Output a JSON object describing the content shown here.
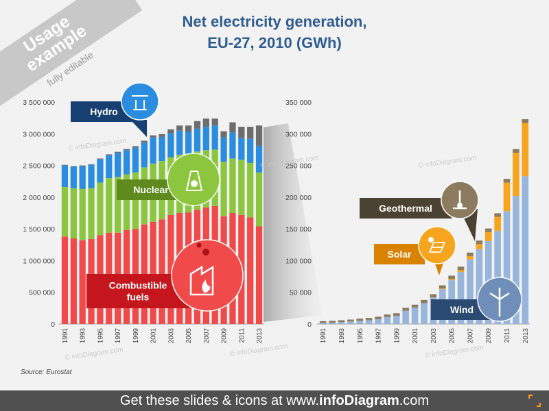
{
  "title_line1": "Net electricity generation,",
  "title_line2": "EU-27, 2010 (GWh)",
  "ribbon": {
    "line1": "Usage",
    "line2": "example",
    "line3": "fully editable"
  },
  "source": "Source:  Eurostat",
  "footer": {
    "prefix": "Get these slides & icons at www.",
    "brand": "infoDiagram",
    "suffix": ".com"
  },
  "watermark": "© infoDiagram.com",
  "colors": {
    "combustible": "#f04a4a",
    "nuclear": "#8cc63f",
    "hydro": "#2b8de0",
    "other": "#6d6d6d",
    "wind": "#98b5dc",
    "solar": "#f7a41e",
    "geothermal": "#8c7b5e",
    "callout_hydro": "#173f72",
    "callout_nuclear": "#5e8a1e",
    "callout_comb": "#c4161c",
    "callout_geo": "#4a4233",
    "callout_solar": "#d98200",
    "callout_wind": "#2c4b73"
  },
  "callouts": {
    "hydro": "Hydro",
    "nuclear": "Nuclear",
    "combustible_1": "Combustible",
    "combustible_2": "fuels",
    "geothermal": "Geothermal",
    "solar": "Solar",
    "wind": "Wind"
  },
  "icons": [
    "hydro-dam-icon",
    "nuclear-plant-icon",
    "factory-flame-icon",
    "thermometer-ground-icon",
    "solar-panel-icon",
    "wind-turbine-icon"
  ],
  "chart_data": [
    {
      "type": "bar",
      "stacked": true,
      "categories": [
        "1991",
        "1992",
        "1993",
        "1994",
        "1995",
        "1996",
        "1997",
        "1998",
        "1999",
        "2000",
        "2001",
        "2002",
        "2003",
        "2004",
        "2005",
        "2006",
        "2007",
        "2008",
        "2009",
        "2010",
        "2011",
        "2012",
        "2013"
      ],
      "x_tick_labels": [
        "1991",
        "1993",
        "1995",
        "1997",
        "1999",
        "2001",
        "2003",
        "2005",
        "2007",
        "2009",
        "2011",
        "2013"
      ],
      "y_ticks": [
        "0",
        "500 000",
        "1 000 000",
        "1 500 000",
        "2 000 000",
        "2 500 000",
        "3 000 000",
        "3 500 000"
      ],
      "ylim": [
        0,
        3500000
      ],
      "series": [
        {
          "name": "Combustible fuels",
          "values": [
            1380000,
            1350000,
            1320000,
            1340000,
            1400000,
            1440000,
            1440000,
            1480000,
            1500000,
            1570000,
            1610000,
            1650000,
            1720000,
            1750000,
            1760000,
            1800000,
            1840000,
            1860000,
            1700000,
            1750000,
            1720000,
            1680000,
            1540000
          ]
        },
        {
          "name": "Nuclear",
          "values": [
            780000,
            790000,
            810000,
            800000,
            830000,
            860000,
            880000,
            880000,
            890000,
            900000,
            920000,
            920000,
            910000,
            920000,
            920000,
            920000,
            900000,
            890000,
            860000,
            860000,
            870000,
            860000,
            850000
          ]
        },
        {
          "name": "Hydro",
          "values": [
            340000,
            340000,
            360000,
            370000,
            370000,
            360000,
            380000,
            380000,
            390000,
            390000,
            410000,
            380000,
            380000,
            380000,
            350000,
            360000,
            370000,
            380000,
            380000,
            410000,
            340000,
            380000,
            420000
          ]
        },
        {
          "name": "Other",
          "values": [
            10000,
            10000,
            10000,
            10000,
            10000,
            15000,
            15000,
            20000,
            25000,
            30000,
            35000,
            45000,
            60000,
            80000,
            100000,
            120000,
            130000,
            110000,
            100000,
            160000,
            180000,
            190000,
            320000
          ]
        }
      ]
    },
    {
      "type": "bar",
      "stacked": true,
      "categories": [
        "1991",
        "1992",
        "1993",
        "1994",
        "1995",
        "1996",
        "1997",
        "1998",
        "1999",
        "2000",
        "2001",
        "2002",
        "2003",
        "2004",
        "2005",
        "2006",
        "2007",
        "2008",
        "2009",
        "2010",
        "2011",
        "2012",
        "2013"
      ],
      "x_tick_labels": [
        "1991",
        "1993",
        "1995",
        "1997",
        "1999",
        "2001",
        "2003",
        "2005",
        "2007",
        "2009",
        "2011",
        "2013"
      ],
      "y_ticks": [
        "0",
        "50 000",
        "100 000",
        "150 000",
        "200 000",
        "250 000",
        "300 000",
        "350 000"
      ],
      "ylim": [
        0,
        350000
      ],
      "series": [
        {
          "name": "Wind",
          "values": [
            1500,
            2000,
            3000,
            4000,
            5000,
            6000,
            7500,
            11000,
            13000,
            21000,
            26000,
            33000,
            42000,
            55000,
            69000,
            82000,
            102000,
            118000,
            131000,
            147000,
            178000,
            202000,
            233000
          ]
        },
        {
          "name": "Solar",
          "values": [
            0,
            0,
            0,
            0,
            0,
            0,
            0,
            0,
            0,
            0,
            0,
            0,
            0,
            1000,
            2000,
            3000,
            5000,
            8000,
            14000,
            22000,
            45000,
            68000,
            84000
          ]
        },
        {
          "name": "Geothermal",
          "values": [
            3000,
            3000,
            3000,
            3000,
            3500,
            3500,
            4000,
            4000,
            4000,
            4500,
            4500,
            5000,
            5000,
            5000,
            5200,
            5400,
            5600,
            5600,
            5600,
            5600,
            5900,
            5900,
            6000
          ]
        }
      ]
    }
  ]
}
